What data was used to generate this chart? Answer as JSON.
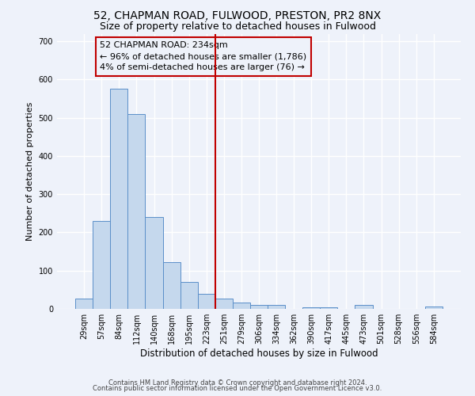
{
  "title_line1": "52, CHAPMAN ROAD, FULWOOD, PRESTON, PR2 8NX",
  "title_line2": "Size of property relative to detached houses in Fulwood",
  "xlabel": "Distribution of detached houses by size in Fulwood",
  "ylabel": "Number of detached properties",
  "categories": [
    "29sqm",
    "57sqm",
    "84sqm",
    "112sqm",
    "140sqm",
    "168sqm",
    "195sqm",
    "223sqm",
    "251sqm",
    "279sqm",
    "306sqm",
    "334sqm",
    "362sqm",
    "390sqm",
    "417sqm",
    "445sqm",
    "473sqm",
    "501sqm",
    "528sqm",
    "556sqm",
    "584sqm"
  ],
  "values": [
    27,
    230,
    575,
    510,
    240,
    123,
    70,
    40,
    27,
    16,
    10,
    10,
    0,
    5,
    5,
    0,
    10,
    0,
    0,
    0,
    7
  ],
  "bar_color": "#c5d8ed",
  "bar_edge_color": "#5b8fc9",
  "highlight_line_color": "#c00000",
  "annotation_text": "52 CHAPMAN ROAD: 234sqm\n← 96% of detached houses are smaller (1,786)\n4% of semi-detached houses are larger (76) →",
  "annotation_box_color": "#c00000",
  "ylim": [
    0,
    720
  ],
  "yticks": [
    0,
    100,
    200,
    300,
    400,
    500,
    600,
    700
  ],
  "footer_line1": "Contains HM Land Registry data © Crown copyright and database right 2024.",
  "footer_line2": "Contains public sector information licensed under the Open Government Licence v3.0.",
  "bg_color": "#eef2fa",
  "grid_color": "#ffffff",
  "title1_fontsize": 10,
  "title2_fontsize": 9,
  "xlabel_fontsize": 8.5,
  "ylabel_fontsize": 8,
  "tick_fontsize": 7,
  "annotation_fontsize": 8,
  "footer_fontsize": 6
}
